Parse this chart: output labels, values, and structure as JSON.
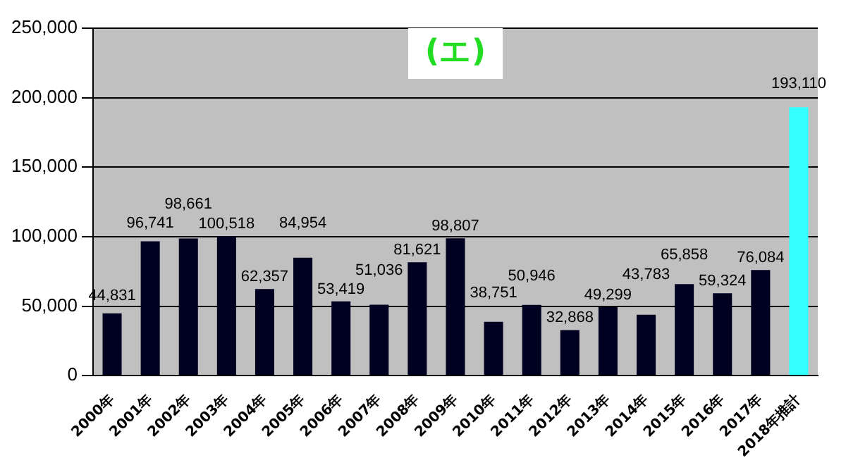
{
  "chart_data": {
    "type": "bar",
    "title": "(エ)",
    "categories": [
      "2000年",
      "2001年",
      "2002年",
      "2003年",
      "2004年",
      "2005年",
      "2006年",
      "2007年",
      "2008年",
      "2009年",
      "2010年",
      "2011年",
      "2012年",
      "2013年",
      "2014年",
      "2015年",
      "2016年",
      "2017年",
      "2018年推計"
    ],
    "values": [
      44831,
      96741,
      98661,
      100518,
      62357,
      84954,
      53419,
      51036,
      81621,
      98807,
      38751,
      50946,
      32868,
      49299,
      43783,
      65858,
      59324,
      76084,
      193110
    ],
    "value_labels": [
      "44,831",
      "96,741",
      "98,661",
      "100,518",
      "62,357",
      "84,954",
      "53,419",
      "51,036",
      "81,621",
      "98,807",
      "38,751",
      "50,946",
      "32,868",
      "49,299",
      "43,783",
      "65,858",
      "59,324",
      "76,084",
      "193,110"
    ],
    "colors": [
      "#000020",
      "#000020",
      "#000020",
      "#000020",
      "#000020",
      "#000020",
      "#000020",
      "#000020",
      "#000020",
      "#000020",
      "#000020",
      "#000020",
      "#000020",
      "#000020",
      "#000020",
      "#000020",
      "#000020",
      "#000020",
      "#33ffff"
    ],
    "ylim": [
      0,
      250000
    ],
    "yticks": [
      {
        "value": 0,
        "label": "0"
      },
      {
        "value": 50000,
        "label": "50,000"
      },
      {
        "value": 100000,
        "label": "100,000"
      },
      {
        "value": 150000,
        "label": "150,000"
      },
      {
        "value": 200000,
        "label": "200,000"
      },
      {
        "value": 250000,
        "label": "250,000"
      }
    ],
    "grid": "y",
    "legend": false
  }
}
